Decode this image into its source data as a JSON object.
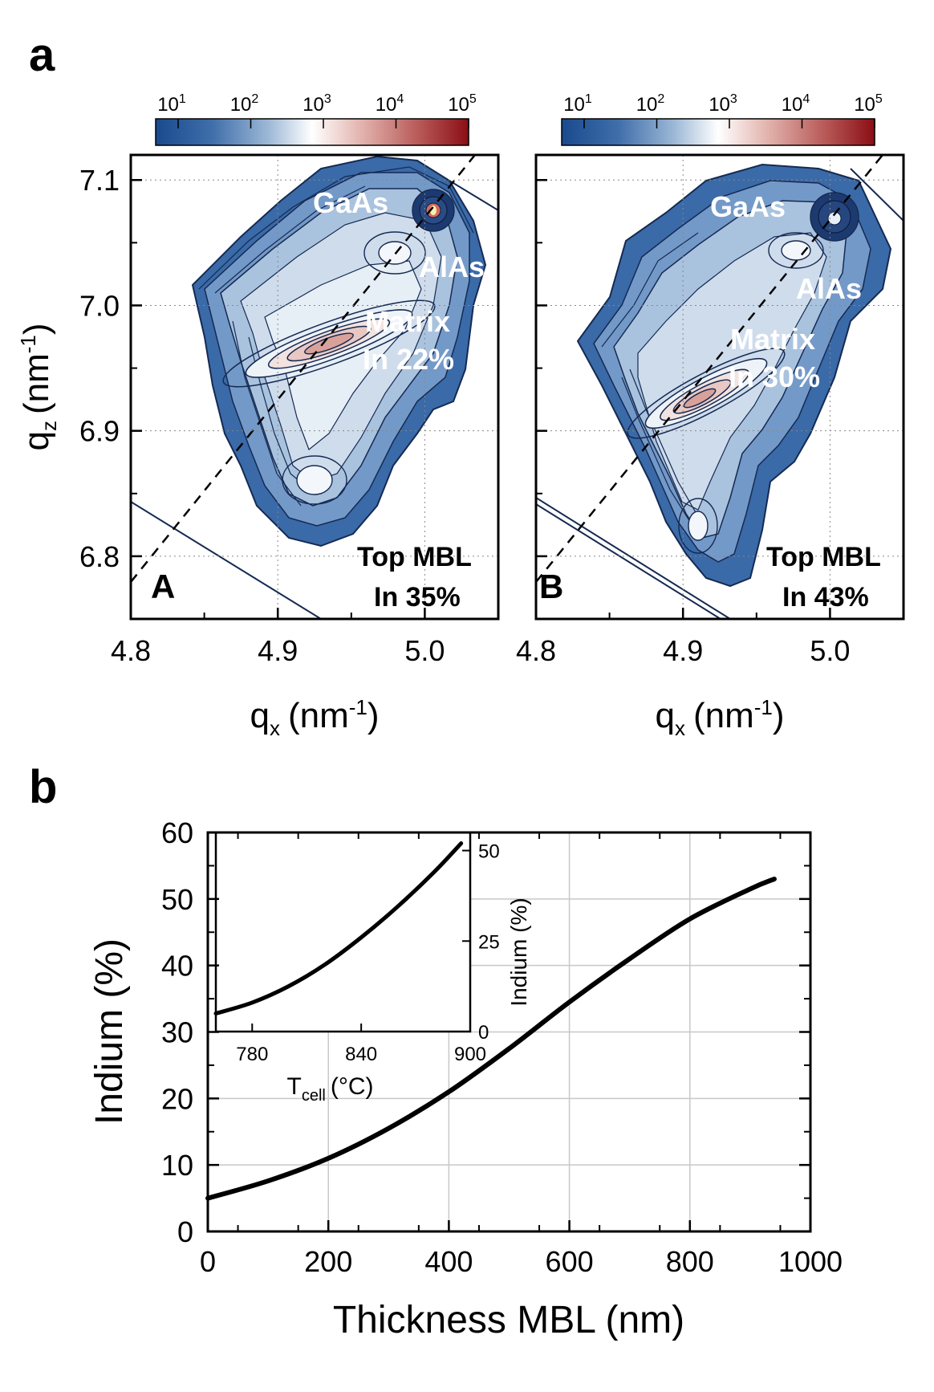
{
  "figure": {
    "panel_a_letter": "a",
    "panel_b_letter": "b"
  },
  "colors": {
    "cmap_low": "#1a4a8e",
    "cmap_mid": "#ffffff",
    "cmap_high": "#8a0e14",
    "contour_line": "#152a52",
    "line": "#000000",
    "grid_dotted": "#888888",
    "grid_solid": "#c8c8c8"
  },
  "chart_data": [
    {
      "type": "heatmap",
      "panel_label": "A",
      "xlabel": "q",
      "xlabel_sub": "x",
      "xlabel_unit": "(nm",
      "xlabel_sup": "-1",
      "xlabel_close": ")",
      "ylabel": "q",
      "ylabel_sub": "z",
      "ylabel_unit": "(nm",
      "ylabel_sup": "-1",
      "ylabel_close": ")",
      "xlim": [
        4.8,
        5.05
      ],
      "ylim": [
        6.75,
        7.12
      ],
      "xticks": [
        "4.8",
        "4.9",
        "5.0"
      ],
      "yticks": [
        "6.8",
        "6.9",
        "7.0",
        "7.1"
      ],
      "colorbar": {
        "base": "10",
        "exponents": [
          "1",
          "2",
          "3",
          "4",
          "5"
        ]
      },
      "annotations": {
        "substrate": "GaAs",
        "buffer": "AlAs",
        "matrix_line1": "Matrix",
        "matrix_line2": "In 22%",
        "top_line1": "Top MBL",
        "top_line2": "In 35%"
      },
      "peaks": [
        {
          "name": "GaAs",
          "qx": 5.005,
          "qz": 7.07
        },
        {
          "name": "AlAs",
          "qx": 4.99,
          "qz": 7.04
        },
        {
          "name": "Matrix",
          "qx": 4.92,
          "qz": 6.97
        },
        {
          "name": "Top MBL",
          "qx": 4.92,
          "qz": 6.85
        }
      ]
    },
    {
      "type": "heatmap",
      "panel_label": "B",
      "xlabel": "q",
      "xlabel_sub": "x",
      "xlabel_unit": "(nm",
      "xlabel_sup": "-1",
      "xlabel_close": ")",
      "xlim": [
        4.8,
        5.05
      ],
      "ylim": [
        6.75,
        7.12
      ],
      "xticks": [
        "4.8",
        "4.9",
        "5.0"
      ],
      "colorbar": {
        "base": "10",
        "exponents": [
          "1",
          "2",
          "3",
          "4",
          "5"
        ]
      },
      "annotations": {
        "substrate": "GaAs",
        "buffer": "AlAs",
        "matrix_line1": "Matrix",
        "matrix_line2": "In 30%",
        "top_line1": "Top MBL",
        "top_line2": "In 43%"
      },
      "peaks": [
        {
          "name": "GaAs",
          "qx": 5.0,
          "qz": 7.06
        },
        {
          "name": "AlAs",
          "qx": 4.98,
          "qz": 7.04
        },
        {
          "name": "Matrix",
          "qx": 4.9,
          "qz": 6.93
        },
        {
          "name": "Top MBL",
          "qx": 4.9,
          "qz": 6.82
        }
      ]
    },
    {
      "type": "line",
      "xlabel": "Thickness MBL (nm)",
      "ylabel": "Indium (%)",
      "xlim": [
        0,
        1000
      ],
      "ylim": [
        0,
        60
      ],
      "xticks": [
        "0",
        "200",
        "400",
        "600",
        "800",
        "1000"
      ],
      "yticks": [
        "0",
        "10",
        "20",
        "30",
        "40",
        "50",
        "60"
      ],
      "grid": true,
      "series": [
        {
          "x": [
            0,
            100,
            200,
            300,
            400,
            500,
            600,
            700,
            800,
            900,
            940
          ],
          "y": [
            5,
            7.6,
            11,
            15.5,
            21,
            27.5,
            34.5,
            41,
            47,
            51.5,
            53
          ]
        }
      ],
      "inset": {
        "type": "line",
        "xlabel": "T",
        "xlabel_sub": "cell",
        "xlabel_unit": "(°C)",
        "ylabel": "Indium (%)",
        "xlim": [
          760,
          900
        ],
        "ylim": [
          0,
          55
        ],
        "xticks": [
          "780",
          "840",
          "900"
        ],
        "yticks": [
          "0",
          "25",
          "50"
        ],
        "series": [
          {
            "x": [
              760,
              780,
              800,
              820,
              840,
              860,
              880,
              895
            ],
            "y": [
              5,
              8,
              12.5,
              18.5,
              26,
              34.5,
              44,
              52
            ]
          }
        ]
      }
    }
  ]
}
